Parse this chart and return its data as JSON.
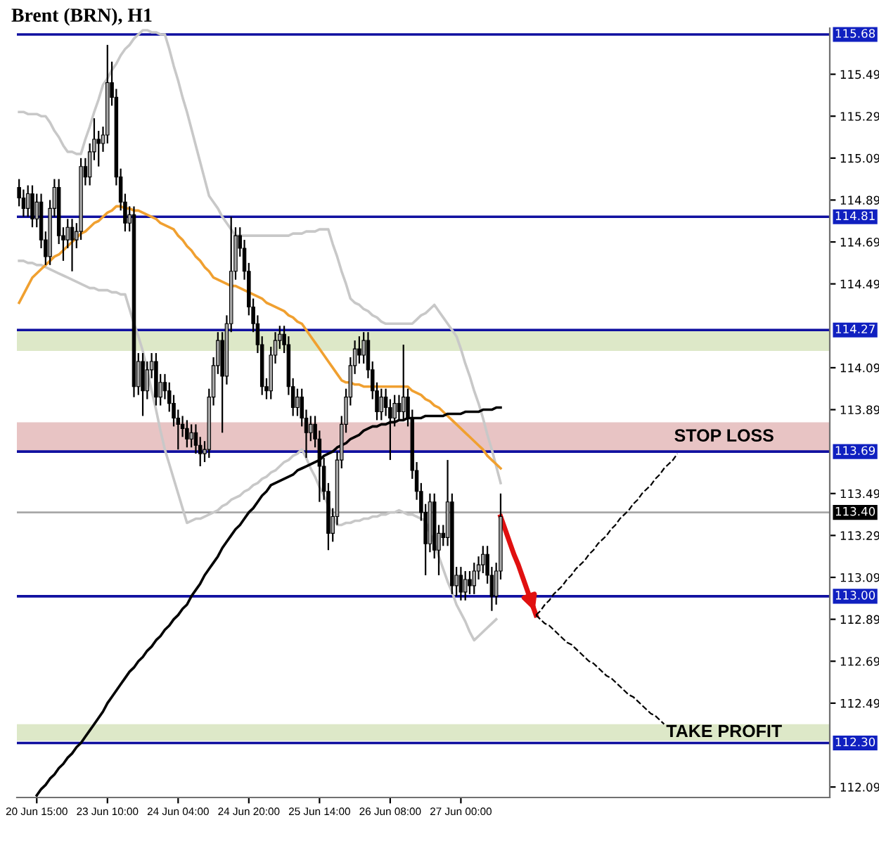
{
  "chart_data": {
    "type": "candlestick",
    "title": "Brent (BRN), H1",
    "categories": [
      null,
      null,
      null,
      null,
      "20 Jun 15:00",
      null,
      null,
      null,
      null,
      null,
      null,
      null,
      null,
      null,
      null,
      null,
      null,
      null,
      null,
      null,
      "23 Jun 10:00",
      null,
      null,
      null,
      null,
      null,
      null,
      null,
      null,
      null,
      null,
      null,
      null,
      null,
      null,
      null,
      "24 Jun 04:00",
      null,
      null,
      null,
      null,
      null,
      null,
      null,
      null,
      null,
      null,
      null,
      null,
      null,
      null,
      null,
      "24 Jun 20:00",
      null,
      null,
      null,
      null,
      null,
      null,
      null,
      null,
      null,
      null,
      null,
      null,
      null,
      null,
      null,
      "25 Jun 14:00",
      null,
      null,
      null,
      null,
      null,
      null,
      null,
      null,
      null,
      null,
      null,
      null,
      null,
      null,
      null,
      "26 Jun 08:00",
      null,
      null,
      null,
      null,
      null,
      null,
      null,
      null,
      null,
      null,
      null,
      null,
      null,
      null,
      null,
      "27 Jun 00:00",
      null,
      null,
      null,
      null,
      null,
      null,
      null,
      null,
      null,
      null,
      null,
      null,
      null,
      null,
      null,
      null,
      null,
      null,
      null,
      null,
      null,
      null,
      null,
      null,
      null,
      null,
      null,
      null,
      null,
      null,
      null,
      null,
      null,
      null,
      null,
      null,
      null,
      null,
      null,
      null,
      null,
      null,
      null,
      null,
      null,
      null,
      null,
      null,
      null,
      null,
      null,
      null,
      null,
      null,
      null,
      null,
      null,
      null,
      null,
      null,
      null,
      null,
      null,
      null,
      null,
      null,
      null,
      null,
      null,
      null,
      null,
      null,
      null,
      null,
      null,
      null,
      null,
      null,
      null,
      null,
      null,
      null,
      null
    ],
    "ohlc": [
      [
        114.95,
        114.99,
        114.86,
        114.9
      ],
      [
        114.9,
        114.94,
        114.81,
        114.85
      ],
      [
        114.85,
        114.96,
        114.81,
        114.92
      ],
      [
        114.92,
        114.96,
        114.76,
        114.8
      ],
      [
        114.8,
        114.92,
        114.76,
        114.88
      ],
      [
        114.88,
        114.92,
        114.66,
        114.7
      ],
      [
        114.7,
        114.74,
        114.58,
        114.62
      ],
      [
        114.62,
        114.89,
        114.58,
        114.85
      ],
      [
        114.85,
        114.99,
        114.81,
        114.95
      ],
      [
        114.95,
        114.99,
        114.68,
        114.72
      ],
      [
        114.72,
        114.76,
        114.6,
        114.7
      ],
      [
        114.7,
        114.8,
        114.66,
        114.76
      ],
      [
        114.76,
        114.8,
        114.55,
        114.7
      ],
      [
        114.7,
        114.78,
        114.66,
        114.74
      ],
      [
        114.74,
        115.09,
        114.7,
        115.05
      ],
      [
        115.05,
        115.09,
        114.96,
        115.0
      ],
      [
        115.0,
        115.16,
        114.96,
        115.12
      ],
      [
        115.12,
        115.28,
        115.08,
        115.18
      ],
      [
        115.18,
        115.22,
        115.05,
        115.16
      ],
      [
        115.16,
        115.24,
        115.12,
        115.2
      ],
      [
        115.2,
        115.63,
        115.16,
        115.45
      ],
      [
        115.45,
        115.55,
        115.34,
        115.38
      ],
      [
        115.38,
        115.42,
        114.96,
        115.0
      ],
      [
        115.0,
        115.04,
        114.84,
        114.88
      ],
      [
        114.88,
        114.92,
        114.74,
        114.78
      ],
      [
        114.78,
        114.86,
        114.74,
        114.82
      ],
      [
        114.82,
        114.86,
        113.95,
        114.0
      ],
      [
        114.0,
        114.16,
        113.96,
        114.12
      ],
      [
        114.12,
        114.16,
        113.86,
        113.98
      ],
      [
        113.98,
        114.12,
        113.94,
        114.08
      ],
      [
        114.08,
        114.16,
        114.04,
        114.12
      ],
      [
        114.12,
        114.16,
        113.91,
        113.95
      ],
      [
        113.95,
        114.06,
        113.91,
        114.02
      ],
      [
        114.02,
        114.06,
        113.94,
        113.98
      ],
      [
        113.98,
        114.02,
        113.88,
        113.92
      ],
      [
        113.92,
        113.96,
        113.81,
        113.85
      ],
      [
        113.85,
        113.89,
        113.7,
        113.82
      ],
      [
        113.82,
        113.86,
        113.76,
        113.8
      ],
      [
        113.8,
        113.84,
        113.71,
        113.75
      ],
      [
        113.75,
        113.82,
        113.71,
        113.78
      ],
      [
        113.78,
        113.82,
        113.68,
        113.72
      ],
      [
        113.72,
        113.76,
        113.62,
        113.68
      ],
      [
        113.68,
        113.74,
        113.64,
        113.7
      ],
      [
        113.7,
        113.99,
        113.66,
        113.95
      ],
      [
        113.95,
        114.14,
        113.91,
        114.1
      ],
      [
        114.1,
        114.26,
        114.06,
        114.22
      ],
      [
        114.22,
        114.26,
        113.78,
        114.05
      ],
      [
        114.05,
        114.34,
        114.01,
        114.3
      ],
      [
        114.3,
        114.81,
        114.26,
        114.55
      ],
      [
        114.55,
        114.76,
        114.51,
        114.72
      ],
      [
        114.72,
        114.76,
        114.62,
        114.66
      ],
      [
        114.66,
        114.7,
        114.51,
        114.55
      ],
      [
        114.55,
        114.59,
        114.34,
        114.38
      ],
      [
        114.38,
        114.42,
        114.26,
        114.3
      ],
      [
        114.3,
        114.34,
        114.16,
        114.2
      ],
      [
        114.2,
        114.24,
        113.96,
        114.0
      ],
      [
        114.0,
        114.04,
        113.94,
        113.98
      ],
      [
        113.98,
        114.19,
        113.94,
        114.15
      ],
      [
        114.15,
        114.26,
        114.11,
        114.22
      ],
      [
        114.22,
        114.29,
        114.18,
        114.25
      ],
      [
        114.25,
        114.29,
        114.16,
        114.2
      ],
      [
        114.2,
        114.24,
        113.96,
        114.0
      ],
      [
        114.0,
        114.04,
        113.86,
        113.9
      ],
      [
        113.9,
        113.99,
        113.86,
        113.95
      ],
      [
        113.95,
        113.99,
        113.81,
        113.85
      ],
      [
        113.85,
        113.89,
        113.66,
        113.78
      ],
      [
        113.78,
        113.86,
        113.74,
        113.82
      ],
      [
        113.82,
        113.86,
        113.71,
        113.75
      ],
      [
        113.75,
        113.79,
        113.45,
        113.62
      ],
      [
        113.62,
        113.66,
        113.46,
        113.5
      ],
      [
        113.5,
        113.54,
        113.22,
        113.3
      ],
      [
        113.3,
        113.42,
        113.26,
        113.38
      ],
      [
        113.38,
        113.69,
        113.34,
        113.65
      ],
      [
        113.65,
        113.86,
        113.61,
        113.82
      ],
      [
        113.82,
        113.99,
        113.78,
        113.95
      ],
      [
        113.95,
        114.14,
        113.91,
        114.1
      ],
      [
        114.1,
        114.22,
        114.06,
        114.18
      ],
      [
        114.18,
        114.24,
        114.11,
        114.15
      ],
      [
        114.15,
        114.26,
        114.11,
        114.22
      ],
      [
        114.22,
        114.26,
        114.04,
        114.08
      ],
      [
        114.08,
        114.12,
        113.94,
        113.98
      ],
      [
        113.98,
        114.02,
        113.84,
        113.88
      ],
      [
        113.88,
        113.99,
        113.84,
        113.95
      ],
      [
        113.95,
        113.99,
        113.86,
        113.9
      ],
      [
        113.9,
        113.94,
        113.65,
        113.85
      ],
      [
        113.85,
        113.96,
        113.81,
        113.92
      ],
      [
        113.92,
        113.96,
        113.84,
        113.88
      ],
      [
        113.88,
        114.2,
        113.84,
        113.95
      ],
      [
        113.95,
        113.99,
        113.81,
        113.85
      ],
      [
        113.85,
        113.89,
        113.56,
        113.6
      ],
      [
        113.6,
        113.64,
        113.46,
        113.5
      ],
      [
        113.5,
        113.54,
        113.36,
        113.4
      ],
      [
        113.4,
        113.44,
        113.1,
        113.25
      ],
      [
        113.25,
        113.49,
        113.21,
        113.45
      ],
      [
        113.45,
        113.49,
        113.18,
        113.22
      ],
      [
        113.22,
        113.34,
        113.1,
        113.3
      ],
      [
        113.3,
        113.34,
        113.24,
        113.28
      ],
      [
        113.28,
        113.65,
        113.24,
        113.45
      ],
      [
        113.45,
        113.49,
        113.01,
        113.05
      ],
      [
        113.05,
        113.14,
        113.0,
        113.1
      ],
      [
        113.1,
        113.14,
        112.98,
        113.02
      ],
      [
        113.02,
        113.12,
        112.98,
        113.08
      ],
      [
        113.08,
        113.12,
        113.01,
        113.05
      ],
      [
        113.05,
        113.16,
        113.01,
        113.12
      ],
      [
        113.12,
        113.19,
        113.08,
        113.15
      ],
      [
        113.15,
        113.24,
        113.11,
        113.2
      ],
      [
        113.2,
        113.24,
        113.06,
        113.1
      ],
      [
        113.1,
        113.14,
        112.93,
        113.0
      ],
      [
        113.0,
        113.16,
        112.96,
        113.12
      ],
      [
        113.12,
        113.49,
        113.08,
        113.38
      ],
      null,
      null,
      null,
      null,
      null,
      null,
      null,
      null,
      null,
      null,
      null,
      null,
      null,
      null,
      null,
      null,
      null,
      null,
      null,
      null,
      null,
      null,
      null,
      null,
      null,
      null,
      null,
      null,
      null,
      null,
      null,
      null,
      null,
      null,
      null,
      null,
      null,
      null,
      null,
      null,
      null,
      null,
      null,
      null,
      null,
      null,
      null,
      null,
      null,
      null,
      null,
      null,
      null,
      null,
      null,
      null,
      null,
      null,
      null,
      null,
      null,
      null,
      null,
      null,
      null,
      null,
      null,
      null,
      null,
      null,
      null,
      null,
      null,
      null
    ],
    "series": [
      {
        "type": "line",
        "color": "#c8c8c8",
        "values": [
          115.31,
          115.31,
          115.3,
          115.3,
          115.3,
          115.29,
          115.29,
          115.26,
          115.22,
          115.19,
          115.15,
          115.12,
          115.12,
          115.11,
          115.11,
          115.18,
          115.24,
          115.31,
          115.37,
          115.44,
          115.47,
          115.51,
          115.54,
          115.58,
          115.61,
          115.63,
          115.66,
          115.68,
          115.7,
          115.7,
          115.69,
          115.69,
          115.68,
          115.68,
          115.61,
          115.53,
          115.46,
          115.38,
          115.31,
          115.23,
          115.15,
          115.07,
          114.99,
          114.91,
          114.88,
          114.85,
          114.81,
          114.78,
          114.75,
          114.72,
          114.72,
          114.72,
          114.72,
          114.72,
          114.72,
          114.72,
          114.72,
          114.72,
          114.72,
          114.72,
          114.72,
          114.72,
          114.73,
          114.73,
          114.73,
          114.74,
          114.74,
          114.74,
          114.75,
          114.75,
          114.75,
          114.68,
          114.62,
          114.55,
          114.49,
          114.42,
          114.4,
          114.39,
          114.37,
          114.36,
          114.34,
          114.33,
          114.31,
          114.3,
          114.3,
          114.3,
          114.3,
          114.3,
          114.3,
          114.3,
          114.32,
          114.34,
          114.35,
          114.37,
          114.39,
          114.36,
          114.33,
          114.3,
          114.27,
          114.24,
          114.18,
          114.11,
          114.05,
          113.98,
          113.92,
          113.85,
          113.77,
          113.7,
          113.62,
          113.54,
          null,
          null,
          null,
          null,
          null,
          null,
          null,
          null,
          null,
          null,
          null,
          null,
          null,
          null,
          null,
          null,
          null,
          null,
          null,
          null,
          null,
          null,
          null,
          null,
          null,
          null,
          null,
          null,
          null,
          null,
          null,
          null,
          null,
          null,
          null,
          null,
          null,
          null,
          null,
          null,
          null,
          null,
          null,
          null,
          null,
          null,
          null,
          null,
          null,
          null,
          null,
          null,
          null,
          null,
          null,
          null,
          null,
          null,
          null,
          null,
          null,
          null,
          null,
          null,
          null,
          null,
          null,
          null,
          null,
          null,
          null,
          null,
          null,
          null
        ]
      },
      {
        "type": "line",
        "color": "#c8c8c8",
        "values": [
          114.6,
          114.6,
          114.59,
          114.59,
          114.58,
          114.58,
          114.57,
          114.56,
          114.55,
          114.54,
          114.53,
          114.52,
          114.51,
          114.5,
          114.49,
          114.48,
          114.47,
          114.47,
          114.46,
          114.46,
          114.46,
          114.45,
          114.45,
          114.44,
          114.44,
          114.37,
          114.3,
          114.24,
          114.17,
          114.08,
          113.98,
          113.89,
          113.79,
          113.7,
          113.63,
          113.56,
          113.49,
          113.42,
          113.35,
          113.36,
          113.37,
          113.37,
          113.38,
          113.39,
          113.4,
          113.41,
          113.43,
          113.44,
          113.46,
          113.47,
          113.48,
          113.5,
          113.51,
          113.53,
          113.54,
          113.56,
          113.57,
          113.59,
          113.6,
          113.62,
          113.64,
          113.65,
          113.67,
          113.68,
          113.7,
          113.66,
          113.61,
          113.57,
          113.52,
          113.48,
          113.43,
          113.39,
          113.34,
          113.34,
          113.35,
          113.35,
          113.36,
          113.36,
          113.37,
          113.37,
          113.38,
          113.38,
          113.39,
          113.39,
          113.4,
          113.4,
          113.41,
          113.4,
          113.39,
          113.39,
          113.38,
          113.37,
          113.36,
          113.3,
          113.25,
          113.19,
          113.13,
          113.07,
          113.02,
          112.96,
          112.92,
          112.88,
          112.83,
          112.79,
          112.81,
          112.83,
          112.85,
          112.87,
          112.89,
          null,
          null,
          null,
          null,
          null,
          null,
          null,
          null,
          null,
          null,
          null,
          null,
          null,
          null,
          null,
          null,
          null,
          null,
          null,
          null,
          null,
          null,
          null,
          null,
          null,
          null,
          null,
          null,
          null,
          null,
          null,
          null,
          null,
          null,
          null,
          null,
          null,
          null,
          null,
          null,
          null,
          null,
          null,
          null,
          null,
          null,
          null,
          null,
          null,
          null,
          null,
          null,
          null,
          null,
          null,
          null,
          null,
          null,
          null,
          null,
          null,
          null,
          null,
          null,
          null,
          null,
          null,
          null,
          null,
          null,
          null,
          null,
          null,
          null,
          null
        ]
      },
      {
        "type": "line",
        "color": "#f0a030",
        "values": [
          114.4,
          114.44,
          114.48,
          114.52,
          114.54,
          114.56,
          114.58,
          114.6,
          114.62,
          114.63,
          114.65,
          114.67,
          114.69,
          114.71,
          114.73,
          114.74,
          114.76,
          114.78,
          114.79,
          114.81,
          114.83,
          114.84,
          114.86,
          114.86,
          114.85,
          114.85,
          114.84,
          114.84,
          114.83,
          114.82,
          114.81,
          114.8,
          114.78,
          114.77,
          114.76,
          114.75,
          114.72,
          114.7,
          114.67,
          114.65,
          114.62,
          114.6,
          114.57,
          114.55,
          114.52,
          114.51,
          114.5,
          114.49,
          114.48,
          114.48,
          114.47,
          114.46,
          114.45,
          114.44,
          114.43,
          114.42,
          114.4,
          114.39,
          114.38,
          114.37,
          114.36,
          114.34,
          114.33,
          114.31,
          114.3,
          114.27,
          114.24,
          114.21,
          114.18,
          114.15,
          114.12,
          114.09,
          114.06,
          114.03,
          114.02,
          114.02,
          114.01,
          114.01,
          114.0,
          114.0,
          114.0,
          114.0,
          114.0,
          114.0,
          114.0,
          114.0,
          114.0,
          114.0,
          114.0,
          113.98,
          113.97,
          113.96,
          113.94,
          113.93,
          113.91,
          113.9,
          113.88,
          113.86,
          113.84,
          113.82,
          113.8,
          113.78,
          113.76,
          113.74,
          113.72,
          113.7,
          113.67,
          113.65,
          113.63,
          113.61,
          null,
          null,
          null,
          null,
          null,
          null,
          null,
          null,
          null,
          null,
          null,
          null,
          null,
          null,
          null,
          null,
          null,
          null,
          null,
          null,
          null,
          null,
          null,
          null,
          null,
          null,
          null,
          null,
          null,
          null,
          null,
          null,
          null,
          null,
          null,
          null,
          null,
          null,
          null,
          null,
          null,
          null,
          null,
          null,
          null,
          null,
          null,
          null,
          null,
          null,
          null,
          null,
          null,
          null,
          null,
          null,
          null,
          null,
          null,
          null,
          null,
          null,
          null,
          null,
          null,
          null,
          null,
          null,
          null,
          null,
          null,
          null,
          null,
          null
        ]
      },
      {
        "type": "line",
        "color": "#000000",
        "values": [
          null,
          null,
          null,
          null,
          112.05,
          112.08,
          112.1,
          112.13,
          112.15,
          112.18,
          112.2,
          112.23,
          112.25,
          112.28,
          112.3,
          112.33,
          112.36,
          112.39,
          112.42,
          112.45,
          112.49,
          112.52,
          112.55,
          112.58,
          112.61,
          112.64,
          112.66,
          112.69,
          112.71,
          112.74,
          112.76,
          112.79,
          112.81,
          112.84,
          112.86,
          112.89,
          112.91,
          112.94,
          112.96,
          113.0,
          113.03,
          113.06,
          113.1,
          113.13,
          113.16,
          113.19,
          113.23,
          113.26,
          113.29,
          113.32,
          113.34,
          113.37,
          113.4,
          113.42,
          113.45,
          113.48,
          113.5,
          113.53,
          113.54,
          113.55,
          113.56,
          113.57,
          113.58,
          113.6,
          113.61,
          113.62,
          113.63,
          113.64,
          113.65,
          113.67,
          113.68,
          113.69,
          113.71,
          113.72,
          113.73,
          113.75,
          113.76,
          113.77,
          113.79,
          113.8,
          113.81,
          113.81,
          113.82,
          113.82,
          113.83,
          113.83,
          113.84,
          113.84,
          113.85,
          113.85,
          113.85,
          113.85,
          113.86,
          113.86,
          113.86,
          113.86,
          113.86,
          113.87,
          113.87,
          113.87,
          113.87,
          113.88,
          113.88,
          113.88,
          113.88,
          113.89,
          113.89,
          113.89,
          113.9,
          113.9,
          null,
          null,
          null,
          null,
          null,
          null,
          null,
          null,
          null,
          null,
          null,
          null,
          null,
          null,
          null,
          null,
          null,
          null,
          null,
          null,
          null,
          null,
          null,
          null,
          null,
          null,
          null,
          null,
          null,
          null,
          null,
          null,
          null,
          null,
          null,
          null,
          null,
          null,
          null,
          null,
          null,
          null,
          null,
          null,
          null,
          null,
          null,
          null,
          null,
          null,
          null,
          null,
          null,
          null,
          null,
          null,
          null,
          null,
          null,
          null,
          null,
          null,
          null,
          null,
          null,
          null,
          null,
          null,
          null,
          null,
          null,
          null,
          null,
          null
        ]
      },
      {
        "type": "line",
        "color": "#e01010",
        "values": [
          null,
          null,
          null,
          null,
          null,
          null,
          null,
          null,
          null,
          null,
          null,
          null,
          null,
          null,
          null,
          null,
          null,
          null,
          null,
          null,
          null,
          null,
          null,
          null,
          null,
          null,
          null,
          null,
          null,
          null,
          null,
          null,
          null,
          null,
          null,
          null,
          null,
          null,
          null,
          null,
          null,
          null,
          null,
          null,
          null,
          null,
          null,
          null,
          null,
          null,
          null,
          null,
          null,
          null,
          null,
          null,
          null,
          null,
          null,
          null,
          null,
          null,
          null,
          null,
          null,
          null,
          null,
          null,
          null,
          null,
          null,
          null,
          null,
          null,
          null,
          null,
          null,
          null,
          null,
          null,
          null,
          null,
          null,
          null,
          null,
          null,
          null,
          null,
          null,
          null,
          null,
          null,
          null,
          null,
          null,
          null,
          null,
          null,
          null,
          null,
          null,
          null,
          null,
          null,
          null,
          null,
          null,
          null,
          null,
          113.38,
          113.32,
          113.26,
          113.2,
          113.15,
          113.09,
          113.03,
          112.97,
          112.91,
          null,
          null,
          null,
          null,
          null,
          null,
          null,
          null,
          null,
          null,
          null,
          null,
          null,
          null,
          null,
          null,
          null,
          null,
          null,
          null,
          null,
          null,
          null,
          null,
          null,
          null,
          null,
          null,
          null,
          null,
          null,
          null,
          null,
          null,
          null,
          null,
          null,
          null,
          null,
          null,
          null,
          null,
          null,
          null,
          null,
          null,
          null,
          null,
          null,
          null,
          null,
          null,
          null,
          null,
          null,
          null,
          null,
          null,
          null,
          null,
          null,
          null,
          null,
          null,
          null,
          null
        ]
      },
      {
        "type": "line",
        "color": "#000000",
        "line_style": "dashed",
        "values": [
          null,
          null,
          null,
          null,
          null,
          null,
          null,
          null,
          null,
          null,
          null,
          null,
          null,
          null,
          null,
          null,
          null,
          null,
          null,
          null,
          null,
          null,
          null,
          null,
          null,
          null,
          null,
          null,
          null,
          null,
          null,
          null,
          null,
          null,
          null,
          null,
          null,
          null,
          null,
          null,
          null,
          null,
          null,
          null,
          null,
          null,
          null,
          null,
          null,
          null,
          null,
          null,
          null,
          null,
          null,
          null,
          null,
          null,
          null,
          null,
          null,
          null,
          null,
          null,
          null,
          null,
          null,
          null,
          null,
          null,
          null,
          null,
          null,
          null,
          null,
          null,
          null,
          null,
          null,
          null,
          null,
          null,
          null,
          null,
          null,
          null,
          null,
          null,
          null,
          null,
          null,
          null,
          null,
          null,
          null,
          null,
          null,
          null,
          null,
          null,
          null,
          null,
          null,
          null,
          null,
          null,
          null,
          null,
          null,
          null,
          null,
          null,
          null,
          null,
          null,
          null,
          null,
          112.91,
          112.93,
          112.96,
          112.98,
          113.01,
          113.03,
          113.05,
          113.08,
          113.1,
          113.13,
          113.15,
          113.17,
          113.2,
          113.22,
          113.25,
          113.27,
          113.29,
          113.32,
          113.34,
          113.37,
          113.39,
          113.41,
          113.44,
          113.46,
          113.49,
          113.51,
          113.53,
          113.56,
          113.58,
          113.61,
          113.63,
          113.65,
          113.68,
          null,
          null,
          null,
          null,
          null,
          null,
          null,
          null,
          null,
          null,
          null,
          null,
          null,
          null,
          null,
          null,
          null,
          null,
          null,
          null,
          null,
          null,
          null,
          null,
          null,
          null,
          null,
          null,
          null,
          null,
          null,
          null,
          null,
          null
        ]
      },
      {
        "type": "line",
        "color": "#000000",
        "line_style": "dashed",
        "values": [
          null,
          null,
          null,
          null,
          null,
          null,
          null,
          null,
          null,
          null,
          null,
          null,
          null,
          null,
          null,
          null,
          null,
          null,
          null,
          null,
          null,
          null,
          null,
          null,
          null,
          null,
          null,
          null,
          null,
          null,
          null,
          null,
          null,
          null,
          null,
          null,
          null,
          null,
          null,
          null,
          null,
          null,
          null,
          null,
          null,
          null,
          null,
          null,
          null,
          null,
          null,
          null,
          null,
          null,
          null,
          null,
          null,
          null,
          null,
          null,
          null,
          null,
          null,
          null,
          null,
          null,
          null,
          null,
          null,
          null,
          null,
          null,
          null,
          null,
          null,
          null,
          null,
          null,
          null,
          null,
          null,
          null,
          null,
          null,
          null,
          null,
          null,
          null,
          null,
          null,
          null,
          null,
          null,
          null,
          null,
          null,
          null,
          null,
          null,
          null,
          null,
          null,
          null,
          null,
          null,
          null,
          null,
          null,
          null,
          null,
          null,
          null,
          null,
          null,
          null,
          null,
          null,
          112.91,
          112.89,
          112.87,
          112.86,
          112.84,
          112.82,
          112.8,
          112.78,
          112.77,
          112.75,
          112.73,
          112.71,
          112.69,
          112.68,
          112.66,
          112.64,
          112.62,
          112.61,
          112.59,
          112.57,
          112.55,
          112.53,
          112.52,
          112.5,
          112.48,
          112.46,
          112.44,
          112.43,
          112.41,
          112.39,
          null,
          null,
          null,
          null,
          null,
          null,
          null,
          null,
          null,
          null,
          null,
          null,
          null,
          null,
          null,
          null,
          null,
          null,
          null,
          null,
          null,
          null,
          null,
          null,
          null,
          null,
          null,
          null,
          null,
          null,
          null,
          null,
          null,
          null,
          null,
          null,
          null
        ]
      }
    ],
    "ylim": [
      112.04,
      115.71
    ],
    "yticks": [
      112.09,
      112.49,
      112.69,
      112.89,
      113.09,
      113.29,
      113.49,
      113.89,
      114.09,
      114.49,
      114.69,
      114.89,
      115.09,
      115.29,
      115.49
    ],
    "ref_lines": [
      {
        "axis": "y",
        "value": 115.68,
        "label": "115.68",
        "color": "#1010a0"
      },
      {
        "axis": "y",
        "value": 114.81,
        "label": "114.81",
        "color": "#1010a0"
      },
      {
        "axis": "y",
        "value": 114.27,
        "label": "114.27",
        "color": "#1010a0"
      },
      {
        "axis": "y",
        "value": 113.69,
        "label": "113.69",
        "color": "#1010a0"
      },
      {
        "axis": "y",
        "value": 113.4,
        "label": "113.40",
        "color": "#a8a8a8"
      },
      {
        "axis": "y",
        "value": 113.0,
        "label": "113.00",
        "color": "#1010a0"
      },
      {
        "axis": "y",
        "value": 112.3,
        "label": "112.30",
        "color": "#1010a0"
      }
    ],
    "bands": [
      {
        "axis": "y",
        "from": 114.17,
        "to": 114.27,
        "color": "#dde8c8"
      },
      {
        "axis": "y",
        "from": 113.69,
        "to": 113.83,
        "label": "STOP LOSS",
        "color": "#e8c4c4"
      },
      {
        "axis": "y",
        "from": 112.31,
        "to": 112.39,
        "label": "TAKE PROFIT",
        "color": "#dde8c8"
      }
    ]
  }
}
